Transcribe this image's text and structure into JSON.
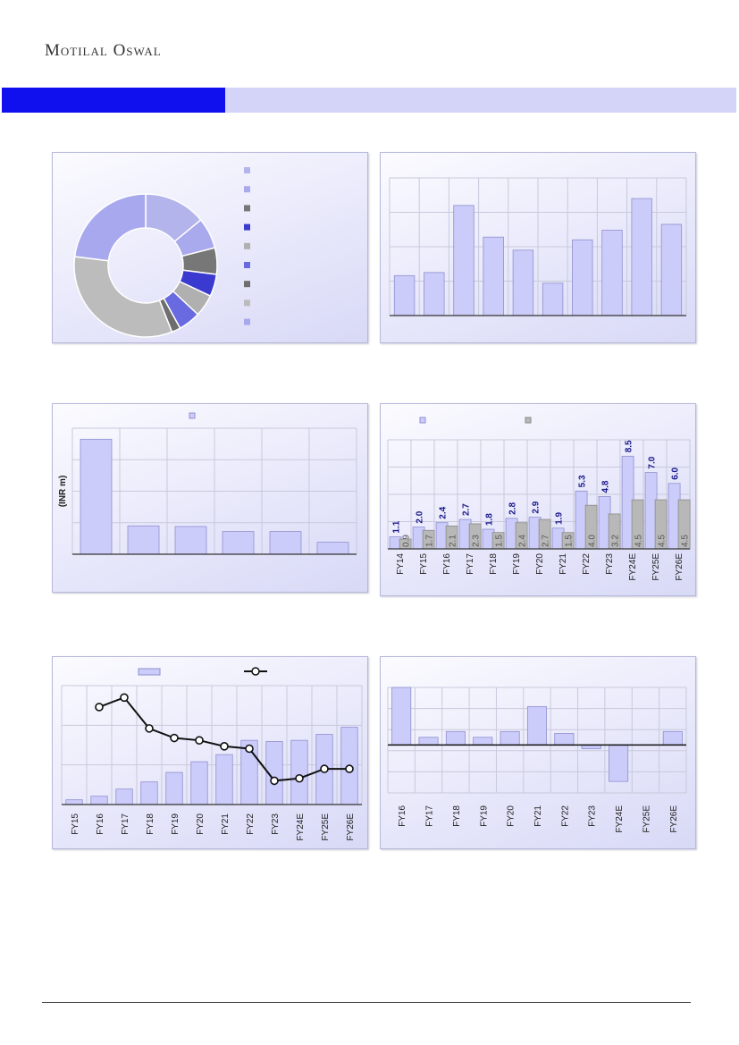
{
  "header": {
    "brand": "Motilal Oswal",
    "colors": {
      "brand_band_dark": "#1010EE",
      "brand_band_light": "#D3D4F7"
    }
  },
  "chart_data": [
    {
      "type": "pie",
      "title": "",
      "variant": "donut",
      "values": [
        14,
        7,
        6,
        5,
        5,
        5,
        2,
        33,
        23
      ],
      "colors": [
        "#b4b4ec",
        "#a9a9ee",
        "#777777",
        "#3a3ad0",
        "#b0b0b0",
        "#6a6ae0",
        "#6e6e6e",
        "#bcbcbc",
        "#a8a8ee"
      ],
      "legend_placement": "right"
    },
    {
      "type": "bar",
      "title": "",
      "categories": [
        "",
        "",
        "",
        "",
        "",
        "",
        "",
        "",
        "",
        ""
      ],
      "values": [
        1.16,
        1.25,
        3.2,
        2.28,
        1.9,
        0.94,
        2.2,
        2.48,
        3.4,
        2.65
      ],
      "ylim": [
        0,
        4
      ],
      "grid": true
    },
    {
      "type": "bar",
      "title": "",
      "ylabel": "(INR m)",
      "categories": [
        "",
        "",
        "",
        "",
        "",
        ""
      ],
      "values": [
        3.65,
        0.9,
        0.88,
        0.72,
        0.72,
        0.38
      ],
      "ylim": [
        0,
        4
      ],
      "grid": true,
      "legend_placement": "top-center"
    },
    {
      "type": "bar",
      "title": "",
      "categories": [
        "FY14",
        "FY15",
        "FY16",
        "FY17",
        "FY18",
        "FY19",
        "FY20",
        "FY21",
        "FY22",
        "FY23",
        "FY24E",
        "FY25E",
        "FY26E"
      ],
      "series": [
        {
          "values": [
            1.1,
            2.0,
            2.4,
            2.7,
            1.8,
            2.8,
            2.9,
            1.9,
            5.3,
            4.8,
            8.5,
            7.0,
            6.0
          ]
        },
        {
          "values": [
            0.9,
            1.7,
            2.1,
            2.3,
            1.5,
            2.4,
            2.7,
            1.5,
            4.0,
            3.2,
            4.5,
            4.5,
            4.5
          ]
        }
      ],
      "ylim": [
        0,
        10
      ],
      "grid": true,
      "legend_placement": "top"
    },
    {
      "type": "bar",
      "title": "",
      "categories": [
        "FY15",
        "FY16",
        "FY17",
        "FY18",
        "FY19",
        "FY20",
        "FY21",
        "FY22",
        "FY23",
        "FY24E",
        "FY25E",
        "FY26E"
      ],
      "series": [
        {
          "kind": "bar",
          "values": [
            0.4,
            0.7,
            1.3,
            1.9,
            2.7,
            3.6,
            4.2,
            5.4,
            5.3,
            5.4,
            5.9,
            6.5
          ]
        },
        {
          "kind": "line",
          "values": [
            null,
            8.2,
            9.0,
            6.4,
            5.6,
            5.4,
            4.9,
            4.7,
            2.0,
            2.2,
            3.0,
            3.0
          ]
        }
      ],
      "ylim": [
        0,
        10
      ],
      "grid": true,
      "legend_placement": "top"
    },
    {
      "type": "bar",
      "title": "",
      "categories": [
        "FY16",
        "FY17",
        "FY18",
        "FY19",
        "FY20",
        "FY21",
        "FY22",
        "FY23",
        "FY24E",
        "FY25E",
        "FY26E"
      ],
      "values": [
        30,
        4,
        7,
        4,
        7,
        20,
        6,
        -2,
        -19,
        0,
        7
      ],
      "ylim": [
        -25,
        30
      ],
      "grid": true
    }
  ]
}
